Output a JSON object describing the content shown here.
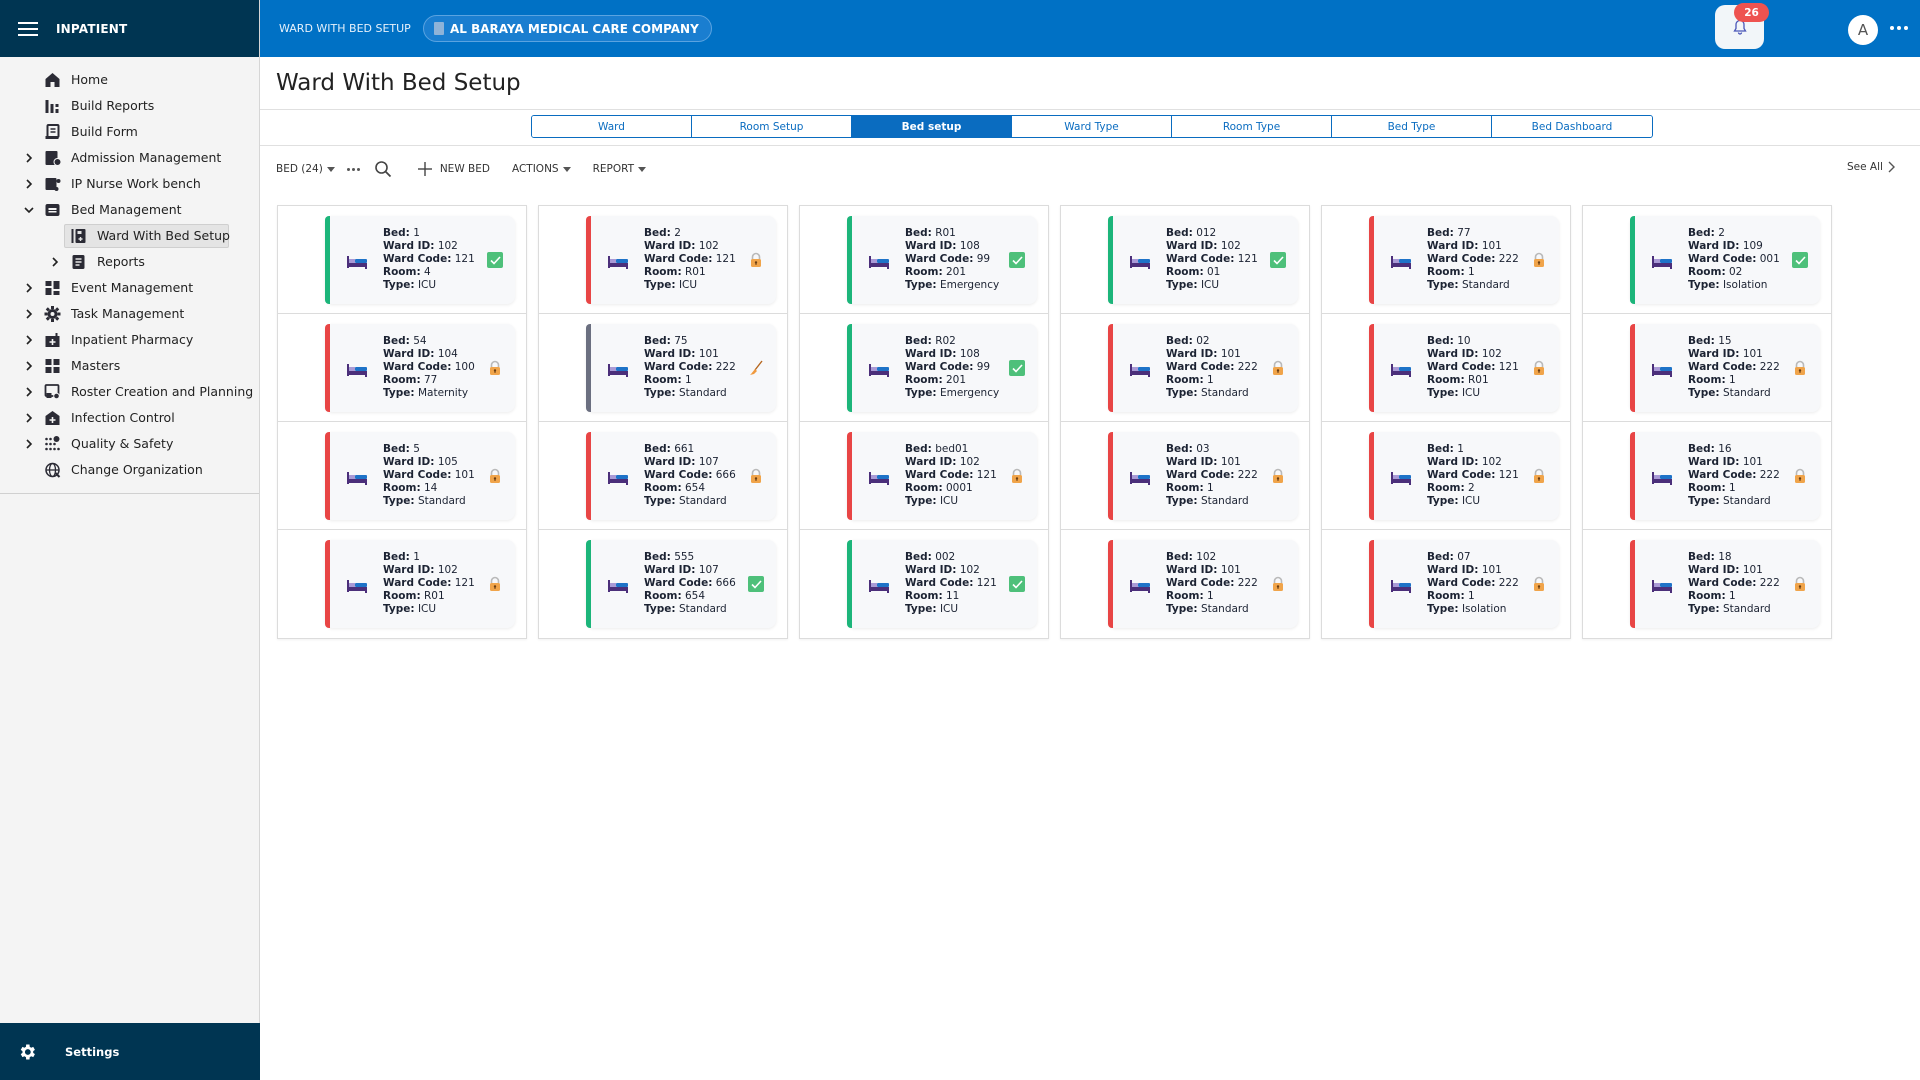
{
  "sidebar": {
    "app_title": "INPATIENT",
    "items": [
      {
        "label": "Home",
        "icon": "home-icon",
        "expandable": false
      },
      {
        "label": "Build Reports",
        "icon": "bar-chart-icon",
        "expandable": false
      },
      {
        "label": "Build Form",
        "icon": "form-icon",
        "expandable": false
      },
      {
        "label": "Admission Management",
        "icon": "admission-icon",
        "expandable": true
      },
      {
        "label": "IP Nurse Work bench",
        "icon": "nurse-workbench-icon",
        "expandable": true
      },
      {
        "label": "Bed Management",
        "icon": "bed-management-icon",
        "expandable": true,
        "expanded": true
      },
      {
        "label": "Ward With Bed Setup",
        "icon": "ward-bed-icon",
        "sub": true,
        "active": true
      },
      {
        "label": "Reports",
        "icon": "reports-icon",
        "sub": true,
        "expandable": true
      },
      {
        "label": "Event Management",
        "icon": "event-icon",
        "expandable": true
      },
      {
        "label": "Task Management",
        "icon": "gear-icon",
        "expandable": true
      },
      {
        "label": "Inpatient Pharmacy",
        "icon": "pharmacy-icon",
        "expandable": true
      },
      {
        "label": "Masters",
        "icon": "masters-icon",
        "expandable": true
      },
      {
        "label": "Roster Creation and Planning",
        "icon": "roster-icon",
        "expandable": true
      },
      {
        "label": "Infection Control",
        "icon": "infection-icon",
        "expandable": true
      },
      {
        "label": "Quality & Safety",
        "icon": "quality-icon",
        "expandable": true
      },
      {
        "label": "Change Organization",
        "icon": "globe-icon",
        "expandable": false
      }
    ],
    "footer": {
      "label": "Settings",
      "icon": "settings-icon"
    }
  },
  "topbar": {
    "title": "WARD WITH BED SETUP",
    "organization": "AL BARAYA MEDICAL CARE COMPANY",
    "notification_count": "26",
    "avatar_initial": "A"
  },
  "page": {
    "title": "Ward With Bed Setup",
    "tabs": [
      {
        "label": "Ward",
        "active": false
      },
      {
        "label": "Room Setup",
        "active": false
      },
      {
        "label": "Bed setup",
        "active": true
      },
      {
        "label": "Ward Type",
        "active": false
      },
      {
        "label": "Room Type",
        "active": false
      },
      {
        "label": "Bed Type",
        "active": false
      },
      {
        "label": "Bed Dashboard",
        "active": false
      }
    ],
    "toolbar": {
      "bed_count_label": "BED (24)",
      "new_bed_label": "NEW BED",
      "actions_label": "ACTIONS",
      "report_label": "REPORT",
      "see_all_label": "See All"
    }
  },
  "labels": {
    "bed": "Bed:",
    "ward_id": "Ward ID:",
    "ward_code": "Ward Code:",
    "room": "Room:",
    "type": "Type:"
  },
  "colors": {
    "available": "#1cb57a",
    "occupied": "#e84545",
    "cleaning": "#6b6f80",
    "brand": "#0071c5",
    "sidebar_dark": "#003552"
  },
  "beds": [
    {
      "bed": "1",
      "ward_id": "102",
      "ward_code": "121",
      "room": "4",
      "type": "ICU",
      "status": "available"
    },
    {
      "bed": "2",
      "ward_id": "102",
      "ward_code": "121",
      "room": "R01",
      "type": "ICU",
      "status": "locked"
    },
    {
      "bed": "R01",
      "ward_id": "108",
      "ward_code": "99",
      "room": "201",
      "type": "Emergency",
      "status": "available"
    },
    {
      "bed": "012",
      "ward_id": "102",
      "ward_code": "121",
      "room": "01",
      "type": "ICU",
      "status": "available"
    },
    {
      "bed": "77",
      "ward_id": "101",
      "ward_code": "222",
      "room": "1",
      "type": "Standard",
      "status": "locked"
    },
    {
      "bed": "2",
      "ward_id": "109",
      "ward_code": "001",
      "room": "02",
      "type": "Isolation",
      "status": "available"
    },
    {
      "bed": "54",
      "ward_id": "104",
      "ward_code": "100",
      "room": "77",
      "type": "Maternity",
      "status": "locked"
    },
    {
      "bed": "75",
      "ward_id": "101",
      "ward_code": "222",
      "room": "1",
      "type": "Standard",
      "status": "cleaning"
    },
    {
      "bed": "R02",
      "ward_id": "108",
      "ward_code": "99",
      "room": "201",
      "type": "Emergency",
      "status": "available"
    },
    {
      "bed": "02",
      "ward_id": "101",
      "ward_code": "222",
      "room": "1",
      "type": "Standard",
      "status": "locked"
    },
    {
      "bed": "10",
      "ward_id": "102",
      "ward_code": "121",
      "room": "R01",
      "type": "ICU",
      "status": "locked"
    },
    {
      "bed": "15",
      "ward_id": "101",
      "ward_code": "222",
      "room": "1",
      "type": "Standard",
      "status": "locked"
    },
    {
      "bed": "5",
      "ward_id": "105",
      "ward_code": "101",
      "room": "14",
      "type": "Standard",
      "status": "locked"
    },
    {
      "bed": "661",
      "ward_id": "107",
      "ward_code": "666",
      "room": "654",
      "type": "Standard",
      "status": "locked"
    },
    {
      "bed": "bed01",
      "ward_id": "102",
      "ward_code": "121",
      "room": "0001",
      "type": "ICU",
      "status": "locked"
    },
    {
      "bed": "03",
      "ward_id": "101",
      "ward_code": "222",
      "room": "1",
      "type": "Standard",
      "status": "locked"
    },
    {
      "bed": "1",
      "ward_id": "102",
      "ward_code": "121",
      "room": "2",
      "type": "ICU",
      "status": "locked"
    },
    {
      "bed": "16",
      "ward_id": "101",
      "ward_code": "222",
      "room": "1",
      "type": "Standard",
      "status": "locked"
    },
    {
      "bed": "1",
      "ward_id": "102",
      "ward_code": "121",
      "room": "R01",
      "type": "ICU",
      "status": "locked"
    },
    {
      "bed": "555",
      "ward_id": "107",
      "ward_code": "666",
      "room": "654",
      "type": "Standard",
      "status": "available"
    },
    {
      "bed": "002",
      "ward_id": "102",
      "ward_code": "121",
      "room": "11",
      "type": "ICU",
      "status": "available"
    },
    {
      "bed": "102",
      "ward_id": "101",
      "ward_code": "222",
      "room": "1",
      "type": "Standard",
      "status": "locked"
    },
    {
      "bed": "07",
      "ward_id": "101",
      "ward_code": "222",
      "room": "1",
      "type": "Isolation",
      "status": "locked"
    },
    {
      "bed": "18",
      "ward_id": "101",
      "ward_code": "222",
      "room": "1",
      "type": "Standard",
      "status": "locked"
    }
  ]
}
